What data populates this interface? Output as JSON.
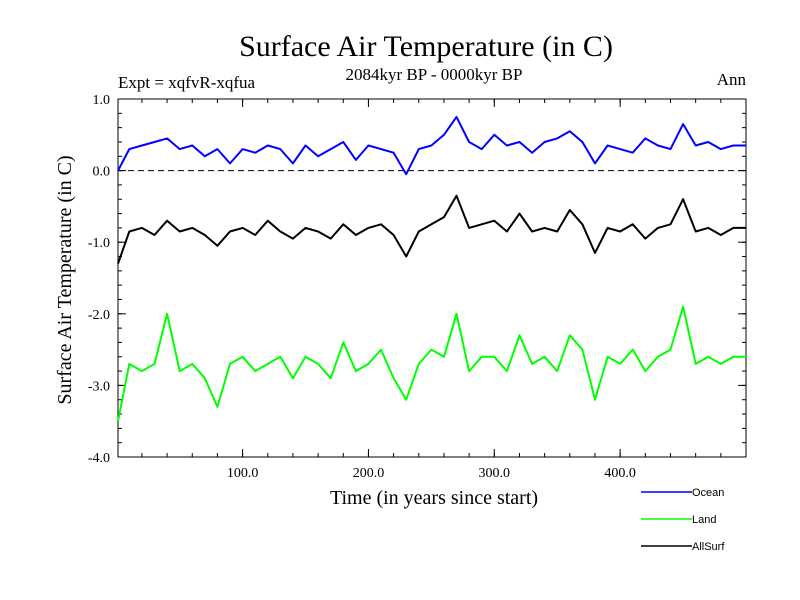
{
  "chart_data": {
    "type": "line",
    "title": "Surface Air Temperature (in C)",
    "subtitle_left": "Expt = xqfvR-xqfua",
    "subtitle_center": "2084kyr BP - 0000kyr BP",
    "subtitle_right": "Ann",
    "xlabel": "Time (in years since start)",
    "ylabel": "Surface Air Temperature (in C)",
    "xlim": [
      1,
      500
    ],
    "ylim": [
      -4.0,
      1.0
    ],
    "xticks": [
      100,
      200,
      300,
      400
    ],
    "xtick_labels": [
      "100.0",
      "200.0",
      "300.0",
      "400.0"
    ],
    "yticks": [
      1.0,
      0.0,
      -1.0,
      -2.0,
      -3.0,
      -4.0
    ],
    "ytick_labels": [
      "1.0",
      "0.0",
      "-1.0",
      "-2.0",
      "-3.0",
      "-4.0"
    ],
    "reference_line": {
      "y": 0.0,
      "style": "dashed"
    },
    "series": [
      {
        "name": "Ocean",
        "color": "#0000ff",
        "x": [
          1,
          10,
          20,
          30,
          40,
          50,
          60,
          70,
          80,
          90,
          100,
          110,
          120,
          130,
          140,
          150,
          160,
          170,
          180,
          190,
          200,
          210,
          220,
          230,
          240,
          250,
          260,
          270,
          280,
          290,
          300,
          310,
          320,
          330,
          340,
          350,
          360,
          370,
          380,
          390,
          400,
          410,
          420,
          430,
          440,
          450,
          460,
          470,
          480,
          490,
          500
        ],
        "values": [
          0.0,
          0.3,
          0.35,
          0.4,
          0.45,
          0.3,
          0.35,
          0.2,
          0.3,
          0.1,
          0.3,
          0.25,
          0.35,
          0.3,
          0.1,
          0.35,
          0.2,
          0.3,
          0.4,
          0.15,
          0.35,
          0.3,
          0.25,
          -0.05,
          0.3,
          0.35,
          0.5,
          0.75,
          0.4,
          0.3,
          0.5,
          0.35,
          0.4,
          0.25,
          0.4,
          0.45,
          0.55,
          0.4,
          0.1,
          0.35,
          0.3,
          0.25,
          0.45,
          0.35,
          0.3,
          0.65,
          0.35,
          0.4,
          0.3,
          0.35,
          0.35
        ]
      },
      {
        "name": "Land",
        "color": "#00ff00",
        "x": [
          1,
          10,
          20,
          30,
          40,
          50,
          60,
          70,
          80,
          90,
          100,
          110,
          120,
          130,
          140,
          150,
          160,
          170,
          180,
          190,
          200,
          210,
          220,
          230,
          240,
          250,
          260,
          270,
          280,
          290,
          300,
          310,
          320,
          330,
          340,
          350,
          360,
          370,
          380,
          390,
          400,
          410,
          420,
          430,
          440,
          450,
          460,
          470,
          480,
          490,
          500
        ],
        "values": [
          -3.5,
          -2.7,
          -2.8,
          -2.7,
          -2.0,
          -2.8,
          -2.7,
          -2.9,
          -3.3,
          -2.7,
          -2.6,
          -2.8,
          -2.7,
          -2.6,
          -2.9,
          -2.6,
          -2.7,
          -2.9,
          -2.4,
          -2.8,
          -2.7,
          -2.5,
          -2.9,
          -3.2,
          -2.7,
          -2.5,
          -2.6,
          -2.0,
          -2.8,
          -2.6,
          -2.6,
          -2.8,
          -2.3,
          -2.7,
          -2.6,
          -2.8,
          -2.3,
          -2.5,
          -3.2,
          -2.6,
          -2.7,
          -2.5,
          -2.8,
          -2.6,
          -2.5,
          -1.9,
          -2.7,
          -2.6,
          -2.7,
          -2.6,
          -2.6
        ]
      },
      {
        "name": "AllSurf",
        "color": "#000000",
        "x": [
          1,
          10,
          20,
          30,
          40,
          50,
          60,
          70,
          80,
          90,
          100,
          110,
          120,
          130,
          140,
          150,
          160,
          170,
          180,
          190,
          200,
          210,
          220,
          230,
          240,
          250,
          260,
          270,
          280,
          290,
          300,
          310,
          320,
          330,
          340,
          350,
          360,
          370,
          380,
          390,
          400,
          410,
          420,
          430,
          440,
          450,
          460,
          470,
          480,
          490,
          500
        ],
        "values": [
          -1.3,
          -0.85,
          -0.8,
          -0.9,
          -0.7,
          -0.85,
          -0.8,
          -0.9,
          -1.05,
          -0.85,
          -0.8,
          -0.9,
          -0.7,
          -0.85,
          -0.95,
          -0.8,
          -0.85,
          -0.95,
          -0.75,
          -0.9,
          -0.8,
          -0.75,
          -0.9,
          -1.2,
          -0.85,
          -0.75,
          -0.65,
          -0.35,
          -0.8,
          -0.75,
          -0.7,
          -0.85,
          -0.6,
          -0.85,
          -0.8,
          -0.85,
          -0.55,
          -0.75,
          -1.15,
          -0.8,
          -0.85,
          -0.75,
          -0.95,
          -0.8,
          -0.75,
          -0.4,
          -0.85,
          -0.8,
          -0.9,
          -0.8,
          -0.8
        ]
      }
    ],
    "legend": [
      {
        "label": "Ocean",
        "color": "#0000ff"
      },
      {
        "label": "Land",
        "color": "#00ff00"
      },
      {
        "label": "AllSurf",
        "color": "#000000"
      }
    ]
  }
}
